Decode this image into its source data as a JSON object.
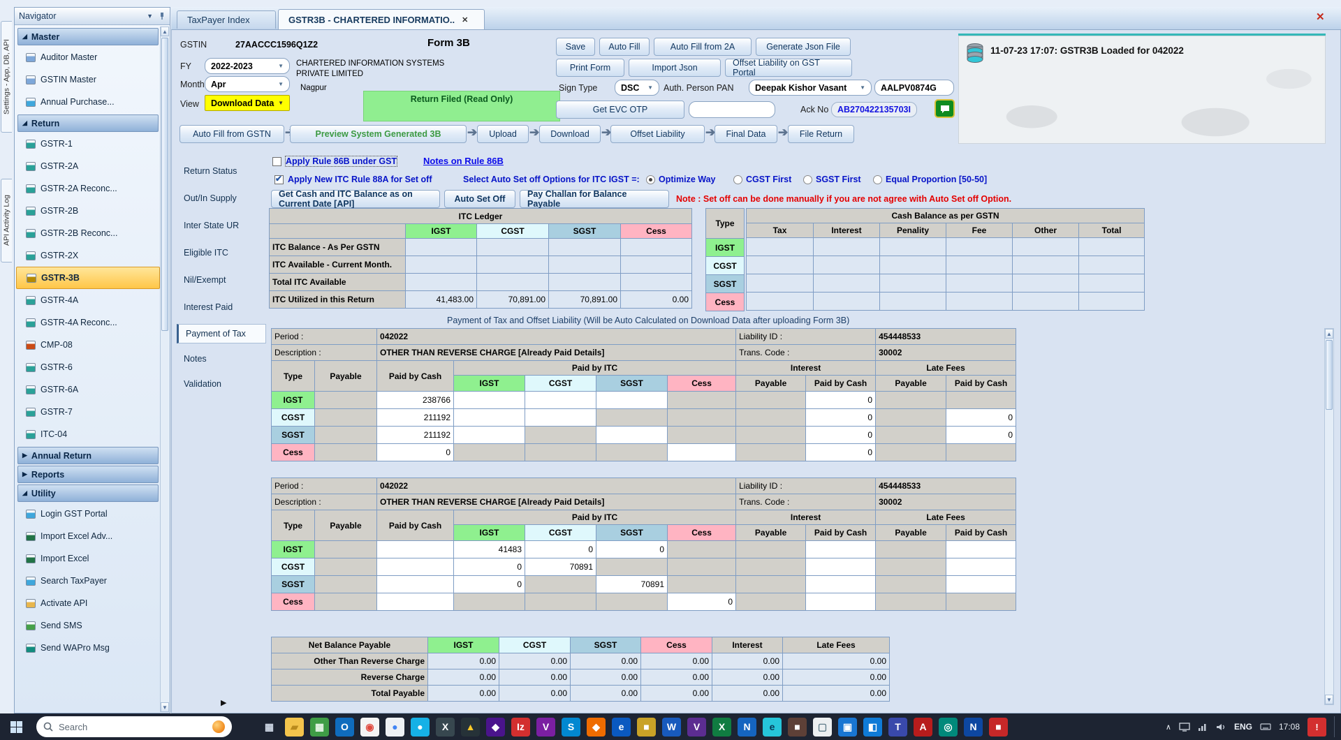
{
  "left_edge_tabs": {
    "settings": "Settings - App, DB, API",
    "api_log": "API Activity Log"
  },
  "navigator": {
    "title": "Navigator",
    "sections": [
      {
        "label": "Master",
        "state": "expanded",
        "items": [
          {
            "label": "Auditor Master",
            "icon": "user-icon",
            "color": "#7da7d9"
          },
          {
            "label": "GSTIN Master",
            "icon": "user-icon",
            "color": "#7da7d9"
          },
          {
            "label": "Annual Purchase...",
            "icon": "globe-icon",
            "color": "#3fa7dc"
          }
        ]
      },
      {
        "label": "Return",
        "state": "expanded",
        "items": [
          {
            "label": "GSTR-1",
            "icon": "ledger-icon",
            "color": "#2aa198"
          },
          {
            "label": "GSTR-2A",
            "icon": "ledger-icon",
            "color": "#2aa198"
          },
          {
            "label": "GSTR-2A Reconc...",
            "icon": "ledger-icon",
            "color": "#2aa198"
          },
          {
            "label": "GSTR-2B",
            "icon": "ledger-icon",
            "color": "#2aa198"
          },
          {
            "label": "GSTR-2B Reconc...",
            "icon": "ledger-icon",
            "color": "#2aa198"
          },
          {
            "label": "GSTR-2X",
            "icon": "ledger-icon",
            "color": "#2aa198"
          },
          {
            "label": "GSTR-3B",
            "icon": "ledger-icon",
            "color": "#b58900",
            "selected": true
          },
          {
            "label": "GSTR-4A",
            "icon": "ledger-icon",
            "color": "#2aa198"
          },
          {
            "label": "GSTR-4A Reconc...",
            "icon": "ledger-icon",
            "color": "#2aa198"
          },
          {
            "label": "CMP-08",
            "icon": "ledger-icon",
            "color": "#cb4b16"
          },
          {
            "label": "GSTR-6",
            "icon": "ledger-icon",
            "color": "#2aa198"
          },
          {
            "label": "GSTR-6A",
            "icon": "ledger-icon",
            "color": "#2aa198"
          },
          {
            "label": "GSTR-7",
            "icon": "ledger-icon",
            "color": "#2aa198"
          },
          {
            "label": "ITC-04",
            "icon": "ledger-icon",
            "color": "#2aa198"
          }
        ]
      },
      {
        "label": "Annual Return",
        "state": "collapsed",
        "items": []
      },
      {
        "label": "Reports",
        "state": "collapsed",
        "items": []
      },
      {
        "label": "Utility",
        "state": "expanded",
        "items": [
          {
            "label": "Login GST Portal",
            "icon": "globe-icon",
            "color": "#3fa7dc"
          },
          {
            "label": "Import Excel Adv...",
            "icon": "sheet-icon",
            "color": "#217346"
          },
          {
            "label": "Import Excel",
            "icon": "sheet-icon",
            "color": "#217346"
          },
          {
            "label": "Search TaxPayer",
            "icon": "globe-icon",
            "color": "#3fa7dc"
          },
          {
            "label": "Activate API",
            "icon": "key-icon",
            "color": "#e8b64c"
          },
          {
            "label": "Send SMS",
            "icon": "message-icon",
            "color": "#46a049"
          },
          {
            "label": "Send WAPro Msg",
            "icon": "message-icon",
            "color": "#128c7e"
          }
        ]
      }
    ]
  },
  "tabs": [
    {
      "label": "TaxPayer Index",
      "active": false
    },
    {
      "label": "GSTR3B - CHARTERED INFORMATIO..",
      "active": true,
      "close": "✕"
    }
  ],
  "window": {
    "close_glyph": "✕"
  },
  "header": {
    "gstin_label": "GSTIN",
    "gstin": "27AACCC1596Q1Z2",
    "form_title": "Form 3B",
    "fy_label": "FY",
    "fy": "2022-2023",
    "month_label": "Month",
    "month": "Apr",
    "view_label": "View",
    "view": "Download Data",
    "company_line1": "CHARTERED INFORMATION SYSTEMS",
    "company_line2": "PRIVATE LIMITED",
    "city": "Nagpur",
    "status_banner": "Return Filed (Read Only)",
    "buttons_row1": [
      "Save",
      "Auto Fill",
      "Auto Fill from 2A",
      "Generate Json File"
    ],
    "buttons_row2": [
      "Print Form",
      "Import Json",
      "Offset Liability on GST Portal"
    ],
    "sign_type_label": "Sign Type",
    "sign_type": "DSC",
    "auth_pan_label": "Auth. Person PAN",
    "auth_person": "Deepak Kishor Vasant",
    "pan": "AALPV0874G",
    "get_evc_label": "Get EVC OTP",
    "ack_label": "Ack No",
    "ack_no": "AB270422135703I",
    "log_message": "11-07-23 17:07: GSTR3B Loaded for 042022"
  },
  "workflow": [
    "Auto Fill from GSTN",
    "Preview System Generated 3B",
    "Upload",
    "Download",
    "Offset Liability",
    "Final Data",
    "File Return"
  ],
  "side_nav": {
    "items": [
      "Return Status",
      "Out/In Supply",
      "Inter State UR",
      "Eligible ITC",
      "Nil/Exempt",
      "Interest Paid",
      "Payment of Tax",
      "Notes",
      "Validation"
    ],
    "active": "Payment of Tax"
  },
  "options": {
    "rule86b_label": "Apply Rule 86B under GST",
    "rule86b_checked": false,
    "notes_link": "Notes on Rule 86B",
    "rule88a_label": "Apply New ITC Rule 88A for Set off",
    "rule88a_checked": true,
    "setoff_label": "Select Auto Set off Options for ITC IGST =:",
    "radios": [
      "Optimize Way",
      "CGST First",
      "SGST First",
      "Equal Proportion [50-50]"
    ],
    "radio_selected": "Optimize Way",
    "btn_get_balance": "Get Cash and ITC Balance as on Current Date [API]",
    "btn_auto_setoff": "Auto Set Off",
    "btn_pay_challan": "Pay Challan for Balance Payable",
    "note": "Note : Set off can be done manually if you are not agree with Auto Set off Option."
  },
  "itc_ledger": {
    "title": "ITC Ledger",
    "columns": [
      "IGST",
      "CGST",
      "SGST",
      "Cess"
    ],
    "rows": [
      {
        "label": "ITC Balance - As Per GSTN",
        "values": [
          "",
          "",
          "",
          ""
        ]
      },
      {
        "label": "ITC Available - Current Month.",
        "values": [
          "",
          "",
          "",
          ""
        ]
      },
      {
        "label": "Total ITC Available",
        "values": [
          "",
          "",
          "",
          ""
        ]
      },
      {
        "label": "ITC Utilized in this Return",
        "values": [
          "41,483.00",
          "70,891.00",
          "70,891.00",
          "0.00"
        ]
      }
    ]
  },
  "cash_balance": {
    "type_label": "Type",
    "title": "Cash Balance as per GSTN",
    "columns": [
      "Tax",
      "Interest",
      "Penality",
      "Fee",
      "Other",
      "Total"
    ],
    "types": [
      "IGST",
      "CGST",
      "SGST",
      "Cess"
    ]
  },
  "payment_caption": "Payment of Tax and Offset Liability (Will be Auto Calculated on Download Data after uploading Form 3B)",
  "payment_headers": {
    "type": "Type",
    "payable": "Payable",
    "paid_cash": "Paid by Cash",
    "paid_itc": "Paid by ITC",
    "itc_cols": [
      "IGST",
      "CGST",
      "SGST",
      "Cess"
    ],
    "interest": "Interest",
    "late_fees": "Late Fees",
    "sub": [
      "Payable",
      "Paid by Cash"
    ]
  },
  "periods": [
    {
      "period_label": "Period :",
      "period": "042022",
      "liability_label": "Liability ID :",
      "liability_id": "454448533",
      "description_label": "Description :",
      "description": "OTHER THAN REVERSE CHARGE [Already Paid Details]",
      "trans_label": "Trans. Code :",
      "trans_code": "30002",
      "rows": [
        {
          "type": "IGST",
          "cells": [
            "g:",
            "w:238766",
            "w:",
            "w:",
            "w:",
            "g:",
            "g:",
            "w:0",
            "g:",
            "g:"
          ]
        },
        {
          "type": "CGST",
          "cells": [
            "g:",
            "w:211192",
            "w:",
            "w:",
            "g:",
            "g:",
            "g:",
            "w:0",
            "g:",
            "w:0"
          ]
        },
        {
          "type": "SGST",
          "cells": [
            "g:",
            "w:211192",
            "w:",
            "g:",
            "w:",
            "g:",
            "g:",
            "w:0",
            "g:",
            "w:0"
          ]
        },
        {
          "type": "Cess",
          "cells": [
            "g:",
            "w:0",
            "g:",
            "g:",
            "g:",
            "w:",
            "g:",
            "w:0",
            "g:",
            "g:"
          ]
        }
      ]
    },
    {
      "period_label": "Period :",
      "period": "042022",
      "liability_label": "Liability ID :",
      "liability_id": "454448533",
      "description_label": "Description :",
      "description": "OTHER THAN REVERSE CHARGE [Already Paid Details]",
      "trans_label": "Trans. Code :",
      "trans_code": "30002",
      "rows": [
        {
          "type": "IGST",
          "cells": [
            "g:",
            "w:",
            "w:41483",
            "w:0",
            "w:0",
            "g:",
            "g:",
            "w:",
            "g:",
            "w:"
          ]
        },
        {
          "type": "CGST",
          "cells": [
            "g:",
            "w:",
            "w:0",
            "w:70891",
            "g:",
            "g:",
            "g:",
            "w:",
            "g:",
            "w:"
          ]
        },
        {
          "type": "SGST",
          "cells": [
            "g:",
            "w:",
            "w:0",
            "g:",
            "w:70891",
            "g:",
            "g:",
            "w:",
            "g:",
            "w:"
          ]
        },
        {
          "type": "Cess",
          "cells": [
            "g:",
            "w:",
            "g:",
            "g:",
            "g:",
            "w:0",
            "g:",
            "w:",
            "g:",
            "g:"
          ]
        }
      ]
    }
  ],
  "summary": {
    "header": [
      "Net Balance Payable",
      "IGST",
      "CGST",
      "SGST",
      "Cess",
      "Interest",
      "Late Fees"
    ],
    "rows": [
      {
        "label": "Other Than Reverse Charge",
        "values": [
          "0.00",
          "0.00",
          "0.00",
          "0.00",
          "0.00",
          "0.00"
        ]
      },
      {
        "label": "Reverse Charge",
        "values": [
          "0.00",
          "0.00",
          "0.00",
          "0.00",
          "0.00",
          "0.00"
        ]
      },
      {
        "label": "Total Payable",
        "values": [
          "0.00",
          "0.00",
          "0.00",
          "0.00",
          "0.00",
          "0.00"
        ]
      }
    ]
  },
  "taskbar": {
    "search_placeholder": "Search",
    "app_icons": [
      {
        "glyph": "▦",
        "bg": "transparent",
        "fg": "#cfd8e6"
      },
      {
        "glyph": "▰",
        "bg": "#f3c44c",
        "fg": "#b98a1d"
      },
      {
        "glyph": "▦",
        "bg": "#3f9d46",
        "fg": "#e9f6ea"
      },
      {
        "glyph": "O",
        "bg": "#0f6cbd",
        "fg": "#ffffff"
      },
      {
        "glyph": "◉",
        "bg": "#f4f4f4",
        "fg": "#e04a3f"
      },
      {
        "glyph": "●",
        "bg": "#eef1f4",
        "fg": "#4285f4"
      },
      {
        "glyph": "●",
        "bg": "#16b1e6",
        "fg": "#ffffff"
      },
      {
        "glyph": "X",
        "bg": "#37474f",
        "fg": "#ffffff"
      },
      {
        "glyph": "▲",
        "bg": "#263238",
        "fg": "#ffca28"
      },
      {
        "glyph": "◆",
        "bg": "#4a148c",
        "fg": "#ffffff"
      },
      {
        "glyph": "Iz",
        "bg": "#d32f2f",
        "fg": "#ffffff"
      },
      {
        "glyph": "V",
        "bg": "#7b1fa2",
        "fg": "#ffffff"
      },
      {
        "glyph": "S",
        "bg": "#0288d1",
        "fg": "#ffffff"
      },
      {
        "glyph": "◆",
        "bg": "#ef6c00",
        "fg": "#ffffff"
      },
      {
        "glyph": "e",
        "bg": "#0a59c0",
        "fg": "#ffffff"
      },
      {
        "glyph": "■",
        "bg": "#c9a227",
        "fg": "#ffffff"
      },
      {
        "glyph": "W",
        "bg": "#185abd",
        "fg": "#ffffff"
      },
      {
        "glyph": "V",
        "bg": "#5c2d91",
        "fg": "#ffffff"
      },
      {
        "glyph": "X",
        "bg": "#107c41",
        "fg": "#ffffff"
      },
      {
        "glyph": "N",
        "bg": "#1565c0",
        "fg": "#ffffff"
      },
      {
        "glyph": "e",
        "bg": "#26c6da",
        "fg": "#083a57"
      },
      {
        "glyph": "■",
        "bg": "#5d4037",
        "fg": "#ffffff"
      },
      {
        "glyph": "▢",
        "bg": "#eceff1",
        "fg": "#607d8b"
      },
      {
        "glyph": "▣",
        "bg": "#1976d2",
        "fg": "#ffffff"
      },
      {
        "glyph": "◧",
        "bg": "#0f7bd7",
        "fg": "#ffffff"
      },
      {
        "glyph": "T",
        "bg": "#3949ab",
        "fg": "#ffffff"
      },
      {
        "glyph": "A",
        "bg": "#b71c1c",
        "fg": "#ffffff"
      },
      {
        "glyph": "◎",
        "bg": "#00897b",
        "fg": "#ffffff"
      },
      {
        "glyph": "N",
        "bg": "#0d47a1",
        "fg": "#ffffff"
      },
      {
        "glyph": "■",
        "bg": "#c62828",
        "fg": "#ffffff"
      }
    ],
    "tray": {
      "expand": "∧",
      "lang": "ENG",
      "time": "17:08"
    }
  }
}
